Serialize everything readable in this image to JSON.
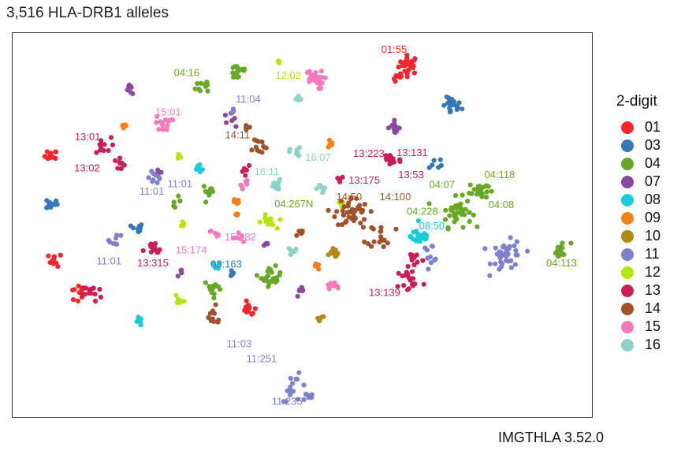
{
  "title": "3,516 HLA-DRB1 alleles",
  "caption": "IMGTHLA 3.52.0",
  "legend": {
    "title": "2-digit",
    "items": [
      {
        "label": "01",
        "color": "#F8262B"
      },
      {
        "label": "03",
        "color": "#3677B5"
      },
      {
        "label": "04",
        "color": "#68A826"
      },
      {
        "label": "07",
        "color": "#8B48A3"
      },
      {
        "label": "08",
        "color": "#17CDD8"
      },
      {
        "label": "09",
        "color": "#F88019"
      },
      {
        "label": "10",
        "color": "#B08A14"
      },
      {
        "label": "11",
        "color": "#7F80CC"
      },
      {
        "label": "12",
        "color": "#B5E512"
      },
      {
        "label": "13",
        "color": "#C71F57"
      },
      {
        "label": "14",
        "color": "#A0522D"
      },
      {
        "label": "15",
        "color": "#F47ABC"
      },
      {
        "label": "16",
        "color": "#8ED3C5"
      }
    ]
  },
  "chart_data": {
    "type": "scatter",
    "title": "3,516 HLA-DRB1 alleles",
    "xlabel": "",
    "ylabel": "",
    "xlim": [
      0,
      100
    ],
    "ylim": [
      0,
      100
    ],
    "grid": false,
    "legend_position": "right",
    "clusters": [
      {
        "group": "01",
        "x": 68.9,
        "y": 93.6,
        "n": 26,
        "spread": 1.6
      },
      {
        "group": "01",
        "x": 67.1,
        "y": 90.0,
        "n": 8,
        "spread": 0.9
      },
      {
        "group": "01",
        "x": 5.4,
        "y": 68.7,
        "n": 12,
        "spread": 1.0
      },
      {
        "group": "01",
        "x": 6.2,
        "y": 40.5,
        "n": 10,
        "spread": 1.1
      },
      {
        "group": "01",
        "x": 10.2,
        "y": 31.3,
        "n": 12,
        "spread": 1.6
      },
      {
        "group": "01",
        "x": 40.5,
        "y": 27.0,
        "n": 10,
        "spread": 1.2
      },
      {
        "group": "03",
        "x": 76.6,
        "y": 82.2,
        "n": 24,
        "spread": 1.5
      },
      {
        "group": "03",
        "x": 73.8,
        "y": 67.0,
        "n": 6,
        "spread": 1.2
      },
      {
        "group": "03",
        "x": 5.5,
        "y": 55.8,
        "n": 12,
        "spread": 1.0
      },
      {
        "group": "03",
        "x": 20.7,
        "y": 49.0,
        "n": 10,
        "spread": 0.9
      },
      {
        "group": "03",
        "x": 37.3,
        "y": 37.3,
        "n": 6,
        "spread": 0.8
      },
      {
        "group": "04",
        "x": 38.6,
        "y": 91.7,
        "n": 20,
        "spread": 1.6
      },
      {
        "group": "04",
        "x": 32.8,
        "y": 88.0,
        "n": 10,
        "spread": 1.5
      },
      {
        "group": "04",
        "x": 77.3,
        "y": 53.5,
        "n": 38,
        "spread": 2.5
      },
      {
        "group": "04",
        "x": 81.3,
        "y": 59.5,
        "n": 22,
        "spread": 1.5
      },
      {
        "group": "04",
        "x": 96.0,
        "y": 43.0,
        "n": 14,
        "spread": 1.5
      },
      {
        "group": "04",
        "x": 44.5,
        "y": 36.0,
        "n": 22,
        "spread": 1.6
      },
      {
        "group": "04",
        "x": 33.5,
        "y": 59.2,
        "n": 10,
        "spread": 1.1
      },
      {
        "group": "04",
        "x": 34.3,
        "y": 32.8,
        "n": 12,
        "spread": 1.5
      },
      {
        "group": "04",
        "x": 27.6,
        "y": 56.5,
        "n": 6,
        "spread": 0.8
      },
      {
        "group": "07",
        "x": 19.6,
        "y": 86.8,
        "n": 8,
        "spread": 0.8
      },
      {
        "group": "07",
        "x": 66.2,
        "y": 76.6,
        "n": 14,
        "spread": 1.0
      },
      {
        "group": "07",
        "x": 37.0,
        "y": 78.8,
        "n": 6,
        "spread": 1.0
      },
      {
        "group": "07",
        "x": 49.8,
        "y": 31.8,
        "n": 8,
        "spread": 0.8
      },
      {
        "group": "07",
        "x": 28.6,
        "y": 37.0,
        "n": 4,
        "spread": 0.6
      },
      {
        "group": "07",
        "x": 24.5,
        "y": 64.5,
        "n": 4,
        "spread": 0.8
      },
      {
        "group": "07",
        "x": 43.5,
        "y": 44.5,
        "n": 4,
        "spread": 0.6
      },
      {
        "group": "08",
        "x": 71.0,
        "y": 47.0,
        "n": 30,
        "spread": 1.6
      },
      {
        "group": "08",
        "x": 31.8,
        "y": 65.5,
        "n": 10,
        "spread": 0.9
      },
      {
        "group": "08",
        "x": 21.0,
        "y": 23.8,
        "n": 6,
        "spread": 0.7
      },
      {
        "group": "08",
        "x": 34.6,
        "y": 38.6,
        "n": 6,
        "spread": 0.8
      },
      {
        "group": "09",
        "x": 18.3,
        "y": 76.7,
        "n": 6,
        "spread": 0.5
      },
      {
        "group": "09",
        "x": 55.0,
        "y": 72.0,
        "n": 6,
        "spread": 0.7
      },
      {
        "group": "09",
        "x": 38.4,
        "y": 56.2,
        "n": 6,
        "spread": 0.6
      },
      {
        "group": "09",
        "x": 38.2,
        "y": 52.8,
        "n": 4,
        "spread": 0.5
      },
      {
        "group": "09",
        "x": 52.5,
        "y": 38.6,
        "n": 4,
        "spread": 0.5
      },
      {
        "group": "10",
        "x": 55.8,
        "y": 42.5,
        "n": 10,
        "spread": 0.8
      },
      {
        "group": "10",
        "x": 53.1,
        "y": 24.2,
        "n": 6,
        "spread": 0.8
      },
      {
        "group": "11",
        "x": 86.5,
        "y": 41.5,
        "n": 40,
        "spread": 2.6
      },
      {
        "group": "11",
        "x": 23.5,
        "y": 63.5,
        "n": 10,
        "spread": 1.4
      },
      {
        "group": "11",
        "x": 17.0,
        "y": 46.0,
        "n": 8,
        "spread": 1.1
      },
      {
        "group": "11",
        "x": 48.7,
        "y": 5.7,
        "n": 14,
        "spread": 2.2
      },
      {
        "group": "11",
        "x": 51.0,
        "y": 3.5,
        "n": 8,
        "spread": 0.9
      },
      {
        "group": "11",
        "x": 37.6,
        "y": 81.0,
        "n": 4,
        "spread": 0.6
      },
      {
        "group": "11",
        "x": 72.8,
        "y": 42.5,
        "n": 10,
        "spread": 1.4
      },
      {
        "group": "12",
        "x": 44.0,
        "y": 50.7,
        "n": 16,
        "spread": 1.2
      },
      {
        "group": "12",
        "x": 45.5,
        "y": 94.3,
        "n": 4,
        "spread": 0.5
      },
      {
        "group": "12",
        "x": 28.2,
        "y": 68.6,
        "n": 4,
        "spread": 0.5
      },
      {
        "group": "12",
        "x": 28.8,
        "y": 50.0,
        "n": 4,
        "spread": 0.6
      },
      {
        "group": "12",
        "x": 28.3,
        "y": 30.0,
        "n": 6,
        "spread": 0.8
      },
      {
        "group": "12",
        "x": 56.8,
        "y": 56.0,
        "n": 4,
        "spread": 0.6
      },
      {
        "group": "13",
        "x": 14.3,
        "y": 71.2,
        "n": 12,
        "spread": 1.6
      },
      {
        "group": "13",
        "x": 17.5,
        "y": 66.5,
        "n": 8,
        "spread": 1.3
      },
      {
        "group": "13",
        "x": 23.5,
        "y": 43.0,
        "n": 12,
        "spread": 1.5
      },
      {
        "group": "13",
        "x": 12.7,
        "y": 31.5,
        "n": 12,
        "spread": 1.5
      },
      {
        "group": "13",
        "x": 65.8,
        "y": 67.8,
        "n": 18,
        "spread": 1.6
      },
      {
        "group": "13",
        "x": 69.0,
        "y": 35.0,
        "n": 18,
        "spread": 2.2
      },
      {
        "group": "13",
        "x": 70.0,
        "y": 40.8,
        "n": 10,
        "spread": 1.6
      },
      {
        "group": "13",
        "x": 40.0,
        "y": 65.5,
        "n": 6,
        "spread": 0.9
      },
      {
        "group": "13",
        "x": 56.5,
        "y": 62.5,
        "n": 6,
        "spread": 0.8
      },
      {
        "group": "14",
        "x": 58.8,
        "y": 53.5,
        "n": 42,
        "spread": 2.6
      },
      {
        "group": "14",
        "x": 64.0,
        "y": 47.5,
        "n": 18,
        "spread": 2.2
      },
      {
        "group": "14",
        "x": 42.0,
        "y": 71.5,
        "n": 12,
        "spread": 1.6
      },
      {
        "group": "14",
        "x": 49.5,
        "y": 47.6,
        "n": 6,
        "spread": 0.9
      },
      {
        "group": "14",
        "x": 34.0,
        "y": 25.0,
        "n": 12,
        "spread": 1.8
      },
      {
        "group": "14",
        "x": 40.0,
        "y": 76.4,
        "n": 4,
        "spread": 0.6
      },
      {
        "group": "15",
        "x": 52.0,
        "y": 89.5,
        "n": 26,
        "spread": 1.6
      },
      {
        "group": "15",
        "x": 25.4,
        "y": 77.5,
        "n": 16,
        "spread": 1.3
      },
      {
        "group": "15",
        "x": 38.8,
        "y": 46.5,
        "n": 8,
        "spread": 1.0
      },
      {
        "group": "15",
        "x": 55.4,
        "y": 33.3,
        "n": 10,
        "spread": 0.9
      },
      {
        "group": "15",
        "x": 34.5,
        "y": 48.0,
        "n": 6,
        "spread": 0.8
      },
      {
        "group": "15",
        "x": 39.6,
        "y": 61.2,
        "n": 6,
        "spread": 0.8
      },
      {
        "group": "16",
        "x": 49.2,
        "y": 84.3,
        "n": 6,
        "spread": 0.9
      },
      {
        "group": "16",
        "x": 48.8,
        "y": 69.6,
        "n": 8,
        "spread": 0.9
      },
      {
        "group": "16",
        "x": 45.5,
        "y": 60.5,
        "n": 10,
        "spread": 1.1
      },
      {
        "group": "16",
        "x": 48.2,
        "y": 43.0,
        "n": 8,
        "spread": 0.9
      },
      {
        "group": "16",
        "x": 53.5,
        "y": 59.8,
        "n": 8,
        "spread": 0.8
      }
    ],
    "annotations": [
      {
        "text": "01:55",
        "color": "#F8262B",
        "x": 66.3,
        "y": 97.5
      },
      {
        "text": "04:16",
        "color": "#68A826",
        "x": 29.5,
        "y": 91.2
      },
      {
        "text": "12:02",
        "color": "#B5E512",
        "x": 47.5,
        "y": 90.5
      },
      {
        "text": "11:04",
        "color": "#7F80CC",
        "x": 40.4,
        "y": 84.0
      },
      {
        "text": "15:01",
        "color": "#F47ABC",
        "x": 26.2,
        "y": 80.5
      },
      {
        "text": "13:01",
        "color": "#C71F57",
        "x": 11.9,
        "y": 73.8
      },
      {
        "text": "14:11",
        "color": "#A0522D",
        "x": 38.5,
        "y": 74.3
      },
      {
        "text": "16:07",
        "color": "#8ED3C5",
        "x": 52.8,
        "y": 68.2
      },
      {
        "text": "13:223",
        "color": "#C71F57",
        "x": 61.8,
        "y": 69.2
      },
      {
        "text": "13:131",
        "color": "#C71F57",
        "x": 69.5,
        "y": 69.5
      },
      {
        "text": "13:02",
        "color": "#C71F57",
        "x": 11.8,
        "y": 65.3
      },
      {
        "text": "16:11",
        "color": "#8ED3C5",
        "x": 43.7,
        "y": 64.3
      },
      {
        "text": "13:175",
        "color": "#C71F57",
        "x": 61.0,
        "y": 62.0
      },
      {
        "text": "13:53",
        "color": "#C71F57",
        "x": 69.3,
        "y": 63.5
      },
      {
        "text": "04:118",
        "color": "#68A826",
        "x": 85.0,
        "y": 63.5
      },
      {
        "text": "11:01",
        "color": "#7F80CC",
        "x": 23.3,
        "y": 59.0
      },
      {
        "text": "11:01",
        "color": "#7F80CC",
        "x": 28.3,
        "y": 61.0
      },
      {
        "text": "04:07",
        "color": "#68A826",
        "x": 74.8,
        "y": 60.8
      },
      {
        "text": "14:50",
        "color": "#A0522D",
        "x": 58.3,
        "y": 57.5
      },
      {
        "text": "14:100",
        "color": "#A0522D",
        "x": 66.5,
        "y": 57.5
      },
      {
        "text": "04:267N",
        "color": "#68A826",
        "x": 48.5,
        "y": 55.5
      },
      {
        "text": "04:08",
        "color": "#68A826",
        "x": 85.3,
        "y": 55.3
      },
      {
        "text": "04:228",
        "color": "#68A826",
        "x": 71.3,
        "y": 53.5
      },
      {
        "text": "08:50",
        "color": "#17CDD8",
        "x": 73.0,
        "y": 49.5
      },
      {
        "text": "15:182",
        "color": "#F47ABC",
        "x": 39.0,
        "y": 46.5
      },
      {
        "text": "15:174",
        "color": "#F47ABC",
        "x": 30.3,
        "y": 43.0
      },
      {
        "text": "04:113",
        "color": "#68A826",
        "x": 96.0,
        "y": 39.5
      },
      {
        "text": "11:01",
        "color": "#7F80CC",
        "x": 15.7,
        "y": 40.0
      },
      {
        "text": "13:315",
        "color": "#C71F57",
        "x": 23.5,
        "y": 39.5
      },
      {
        "text": "03:163",
        "color": "#3677B5",
        "x": 36.5,
        "y": 39.2
      },
      {
        "text": "13:139",
        "color": "#C71F57",
        "x": 64.6,
        "y": 31.5
      },
      {
        "text": "11:03",
        "color": "#7F80CC",
        "x": 38.8,
        "y": 17.5
      },
      {
        "text": "11:251",
        "color": "#7F80CC",
        "x": 42.8,
        "y": 13.5
      },
      {
        "text": "11:235",
        "color": "#7F80CC",
        "x": 47.3,
        "y": 1.9
      }
    ]
  }
}
